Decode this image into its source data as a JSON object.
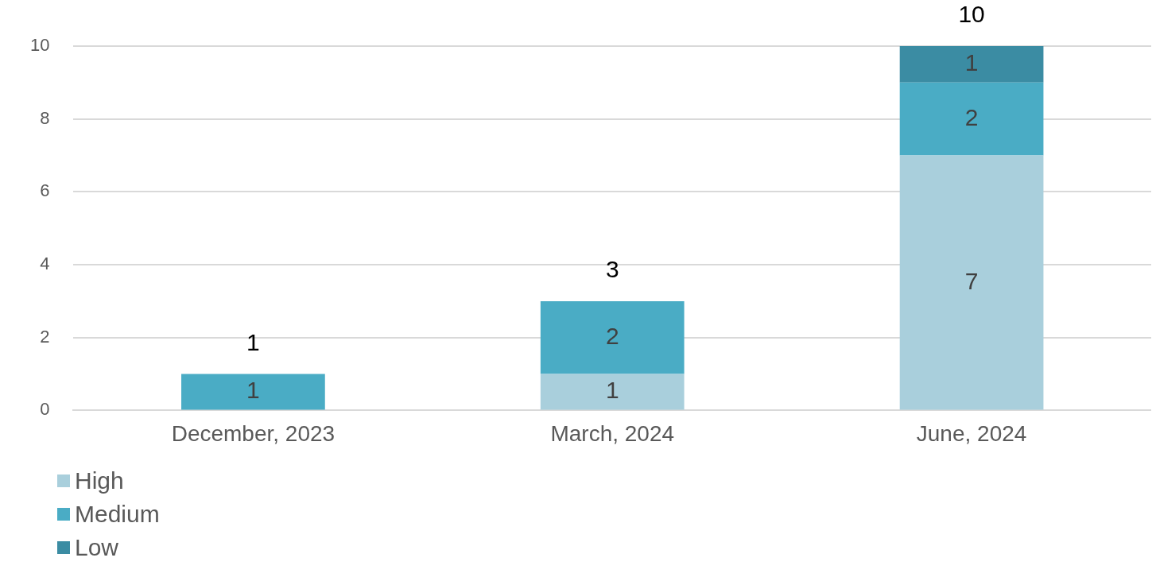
{
  "chart_data": {
    "type": "bar",
    "stacked": true,
    "categories": [
      "December, 2023",
      "March, 2024",
      "June, 2024"
    ],
    "series": [
      {
        "name": "High",
        "color": "#a9cfdc",
        "values": [
          0,
          1,
          7
        ],
        "value_labels": [
          null,
          "1",
          "7"
        ]
      },
      {
        "name": "Medium",
        "color": "#4aacc5",
        "values": [
          1,
          2,
          2
        ],
        "value_labels": [
          "1",
          "2",
          "2"
        ]
      },
      {
        "name": "Low",
        "color": "#3b8ca3",
        "values": [
          0,
          0,
          1
        ],
        "value_labels": [
          null,
          null,
          "1"
        ]
      }
    ],
    "totals": [
      "1",
      "3",
      "10"
    ],
    "ylim": [
      0,
      10
    ],
    "yticks": [
      0,
      2,
      4,
      6,
      8,
      10
    ],
    "grid": "y",
    "legend": "bottom left"
  }
}
